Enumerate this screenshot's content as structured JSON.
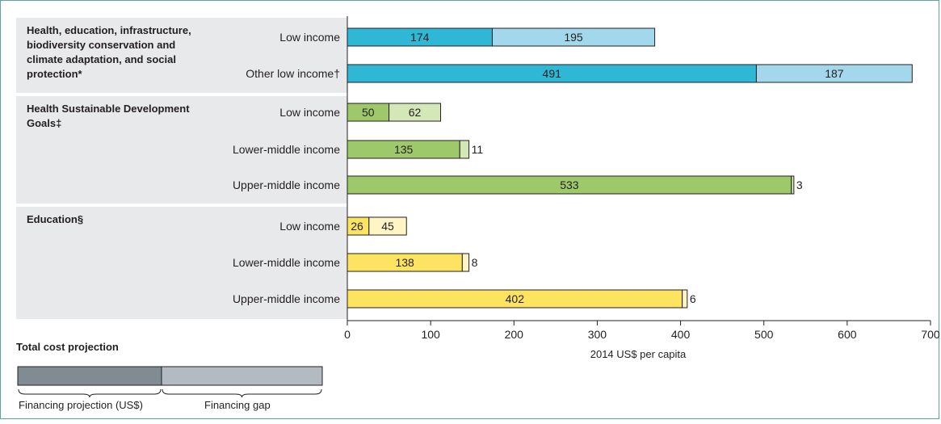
{
  "chart_data": {
    "type": "bar",
    "orientation": "horizontal",
    "stacked": true,
    "xlabel": "2014 US$ per capita",
    "xlim": [
      0,
      700
    ],
    "xticks": [
      0,
      100,
      200,
      300,
      400,
      500,
      600,
      700
    ],
    "stack_segments": [
      "Financing projection (US$)",
      "Financing gap"
    ],
    "groups": [
      {
        "title_lines": [
          "Health, education, infrastructure,",
          "biodiversity conservation and",
          "climate adaptation, and social",
          "protection*"
        ],
        "color_projection": "#2fb7d6",
        "color_gap": "#a3d8ec",
        "rows": [
          {
            "label": "Low income",
            "projection": 174,
            "gap": 195
          },
          {
            "label": "Other low income†",
            "projection": 491,
            "gap": 187
          }
        ]
      },
      {
        "title_lines": [
          "Health Sustainable Development",
          "Goals‡"
        ],
        "color_projection": "#9ec96a",
        "color_gap": "#d4e7b6",
        "rows": [
          {
            "label": "Low income",
            "projection": 50,
            "gap": 62
          },
          {
            "label": "Lower-middle income",
            "projection": 135,
            "gap": 11
          },
          {
            "label": "Upper-middle income",
            "projection": 533,
            "gap": 3
          }
        ]
      },
      {
        "title_lines": [
          "Education§"
        ],
        "color_projection": "#fde460",
        "color_gap": "#fef5c4",
        "rows": [
          {
            "label": "Low income",
            "projection": 26,
            "gap": 45
          },
          {
            "label": "Lower-middle income",
            "projection": 138,
            "gap": 8
          },
          {
            "label": "Upper-middle income",
            "projection": 402,
            "gap": 6
          }
        ]
      }
    ],
    "legend": {
      "title": "Total cost projection",
      "projection_label": "Financing projection (US$)",
      "gap_label": "Financing gap",
      "projection_color": "#808b92",
      "gap_color": "#b3bbc0"
    }
  }
}
